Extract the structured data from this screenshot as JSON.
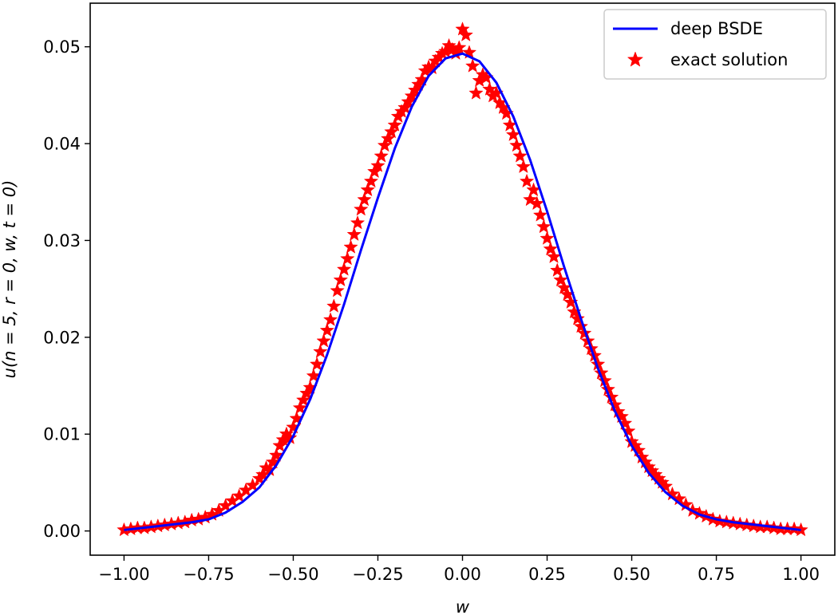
{
  "chart_data": {
    "type": "line",
    "title": "",
    "xlabel": "w",
    "ylabel": "u(n = 5, r = 0, w, t = 0)",
    "xlim": [
      -1.1,
      1.1
    ],
    "ylim": [
      -0.0025,
      0.0545
    ],
    "grid": false,
    "legend_position": "top-right",
    "x_ticks": [
      -1.0,
      -0.75,
      -0.5,
      -0.25,
      0.0,
      0.25,
      0.5,
      0.75,
      1.0
    ],
    "x_tick_labels": [
      "−1.00",
      "−0.75",
      "−0.50",
      "−0.25",
      "0.00",
      "0.25",
      "0.50",
      "0.75",
      "1.00"
    ],
    "y_ticks": [
      0.0,
      0.01,
      0.02,
      0.03,
      0.04,
      0.05
    ],
    "y_tick_labels": [
      "0.00",
      "0.01",
      "0.02",
      "0.03",
      "0.04",
      "0.05"
    ],
    "series": [
      {
        "name": "deep BSDE",
        "kind": "line",
        "color": "#0000ff",
        "x": [
          -1.0,
          -0.9,
          -0.8,
          -0.75,
          -0.7,
          -0.65,
          -0.6,
          -0.55,
          -0.5,
          -0.45,
          -0.4,
          -0.35,
          -0.3,
          -0.25,
          -0.2,
          -0.15,
          -0.1,
          -0.05,
          0.0,
          0.05,
          0.1,
          0.15,
          0.2,
          0.25,
          0.3,
          0.35,
          0.4,
          0.45,
          0.5,
          0.55,
          0.6,
          0.65,
          0.7,
          0.75,
          0.8,
          0.9,
          1.0
        ],
        "y": [
          0.0001,
          0.0005,
          0.0009,
          0.0012,
          0.0019,
          0.003,
          0.0045,
          0.0068,
          0.0098,
          0.0136,
          0.0182,
          0.0234,
          0.029,
          0.0344,
          0.0395,
          0.0438,
          0.047,
          0.0488,
          0.0493,
          0.0485,
          0.0463,
          0.0428,
          0.0383,
          0.033,
          0.0273,
          0.0219,
          0.0168,
          0.0124,
          0.0088,
          0.006,
          0.004,
          0.0026,
          0.0017,
          0.0012,
          0.0009,
          0.0005,
          0.0001
        ]
      },
      {
        "name": "exact solution",
        "kind": "scatter",
        "marker": "star",
        "color": "#ff0000",
        "x": [
          -1.0,
          -0.98,
          -0.96,
          -0.94,
          -0.92,
          -0.9,
          -0.88,
          -0.86,
          -0.84,
          -0.82,
          -0.8,
          -0.78,
          -0.76,
          -0.74,
          -0.72,
          -0.7,
          -0.68,
          -0.66,
          -0.64,
          -0.62,
          -0.6,
          -0.59,
          -0.58,
          -0.57,
          -0.56,
          -0.55,
          -0.54,
          -0.53,
          -0.52,
          -0.51,
          -0.5,
          -0.49,
          -0.48,
          -0.47,
          -0.46,
          -0.45,
          -0.44,
          -0.43,
          -0.42,
          -0.41,
          -0.4,
          -0.39,
          -0.38,
          -0.37,
          -0.36,
          -0.35,
          -0.34,
          -0.33,
          -0.32,
          -0.31,
          -0.3,
          -0.29,
          -0.28,
          -0.27,
          -0.26,
          -0.25,
          -0.24,
          -0.23,
          -0.22,
          -0.21,
          -0.2,
          -0.19,
          -0.18,
          -0.17,
          -0.16,
          -0.15,
          -0.14,
          -0.13,
          -0.12,
          -0.11,
          -0.1,
          -0.09,
          -0.08,
          -0.07,
          -0.06,
          -0.05,
          -0.04,
          -0.03,
          -0.02,
          -0.01,
          0.0,
          0.01,
          0.02,
          0.03,
          0.04,
          0.05,
          0.06,
          0.07,
          0.08,
          0.09,
          0.1,
          0.11,
          0.12,
          0.13,
          0.14,
          0.15,
          0.16,
          0.17,
          0.18,
          0.19,
          0.2,
          0.21,
          0.22,
          0.23,
          0.24,
          0.25,
          0.26,
          0.27,
          0.28,
          0.29,
          0.3,
          0.31,
          0.32,
          0.33,
          0.34,
          0.35,
          0.36,
          0.37,
          0.38,
          0.39,
          0.4,
          0.41,
          0.42,
          0.43,
          0.44,
          0.45,
          0.46,
          0.47,
          0.48,
          0.49,
          0.5,
          0.51,
          0.52,
          0.53,
          0.54,
          0.55,
          0.56,
          0.57,
          0.58,
          0.59,
          0.6,
          0.62,
          0.64,
          0.66,
          0.68,
          0.7,
          0.72,
          0.74,
          0.76,
          0.78,
          0.8,
          0.82,
          0.84,
          0.86,
          0.88,
          0.9,
          0.92,
          0.94,
          0.96,
          0.98,
          1.0
        ],
        "y": [
          0.0001,
          0.0002,
          0.0003,
          0.0003,
          0.0004,
          0.0005,
          0.0006,
          0.0007,
          0.0008,
          0.0009,
          0.0011,
          0.0012,
          0.0014,
          0.0017,
          0.0021,
          0.0026,
          0.0031,
          0.0036,
          0.0042,
          0.0047,
          0.0054,
          0.0058,
          0.0065,
          0.0063,
          0.0071,
          0.0078,
          0.0088,
          0.0094,
          0.01,
          0.0096,
          0.0107,
          0.0116,
          0.0127,
          0.0135,
          0.0142,
          0.0148,
          0.016,
          0.0172,
          0.0185,
          0.0196,
          0.0207,
          0.0218,
          0.0232,
          0.0248,
          0.0259,
          0.027,
          0.0281,
          0.0293,
          0.0306,
          0.0318,
          0.0332,
          0.0342,
          0.0352,
          0.0361,
          0.0371,
          0.0377,
          0.0387,
          0.0398,
          0.0405,
          0.0412,
          0.0419,
          0.0428,
          0.0433,
          0.0437,
          0.0443,
          0.0449,
          0.0455,
          0.0461,
          0.0466,
          0.0475,
          0.0479,
          0.0478,
          0.0485,
          0.0489,
          0.0493,
          0.0495,
          0.0501,
          0.0497,
          0.0493,
          0.0499,
          0.0518,
          0.0512,
          0.0494,
          0.048,
          0.0452,
          0.0465,
          0.0471,
          0.0468,
          0.0456,
          0.0449,
          0.0452,
          0.0442,
          0.0437,
          0.0431,
          0.0419,
          0.0409,
          0.0398,
          0.0387,
          0.0376,
          0.0361,
          0.0342,
          0.0352,
          0.0338,
          0.0326,
          0.0314,
          0.0302,
          0.0291,
          0.0283,
          0.0269,
          0.0259,
          0.0251,
          0.0244,
          0.0236,
          0.0226,
          0.0219,
          0.0211,
          0.0204,
          0.0196,
          0.0188,
          0.0181,
          0.0172,
          0.0163,
          0.0155,
          0.0146,
          0.0138,
          0.013,
          0.0123,
          0.0118,
          0.0111,
          0.0103,
          0.0092,
          0.0088,
          0.0083,
          0.0076,
          0.0071,
          0.0066,
          0.0062,
          0.0058,
          0.0054,
          0.005,
          0.0046,
          0.0038,
          0.0033,
          0.0027,
          0.0021,
          0.0018,
          0.0015,
          0.0012,
          0.001,
          0.0009,
          0.0008,
          0.0007,
          0.0006,
          0.0005,
          0.0004,
          0.0004,
          0.0003,
          0.0002,
          0.0002,
          0.0002,
          0.0001
        ]
      }
    ]
  }
}
